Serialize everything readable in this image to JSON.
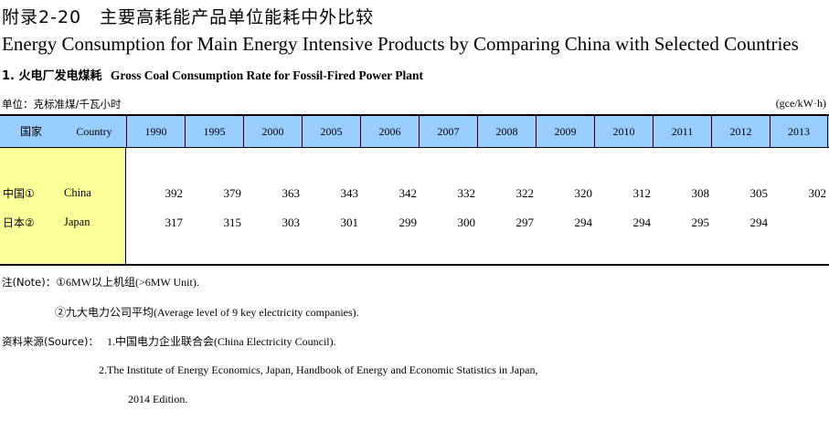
{
  "title_cn": "附录2-20　主要高耗能产品单位能耗中外比较",
  "title_en": "Energy Consumption for Main Energy Intensive Products by Comparing China with Selected Countries",
  "subtitle": {
    "cn": "1. 火电厂发电煤耗",
    "en": "Gross Coal Consumption Rate for Fossil-Fired Power Plant"
  },
  "unit_left": "单位：克标准煤/千瓦小时",
  "unit_right": "(gce/kW·h)",
  "table": {
    "header_cn": "国家",
    "header_en": "Country",
    "years": [
      "1990",
      "1995",
      "2000",
      "2005",
      "2006",
      "2007",
      "2008",
      "2009",
      "2010",
      "2011",
      "2012",
      "2013"
    ],
    "rows": [
      {
        "name_cn": "中国①",
        "name_en": "China",
        "values": [
          "392",
          "379",
          "363",
          "343",
          "342",
          "332",
          "322",
          "320",
          "312",
          "308",
          "305",
          "302"
        ]
      },
      {
        "name_cn": "日本②",
        "name_en": "Japan",
        "values": [
          "317",
          "315",
          "303",
          "301",
          "299",
          "300",
          "297",
          "294",
          "294",
          "295",
          "294",
          ""
        ]
      }
    ]
  },
  "notes": {
    "note_label": "注(Note)：",
    "note1": "①6MW以上机组(>6MW Unit).",
    "note2": "②九大电力公司平均(Average level of 9 key electricity companies).",
    "source_label": "资料来源(Source)：",
    "source1": "1.中国电力企业联合会(China Electricity Council).",
    "source2": "2.The Institute of Energy Economics, Japan, Handbook of Energy and Economic Statistics in Japan,",
    "source2_cont": "2014 Edition."
  }
}
